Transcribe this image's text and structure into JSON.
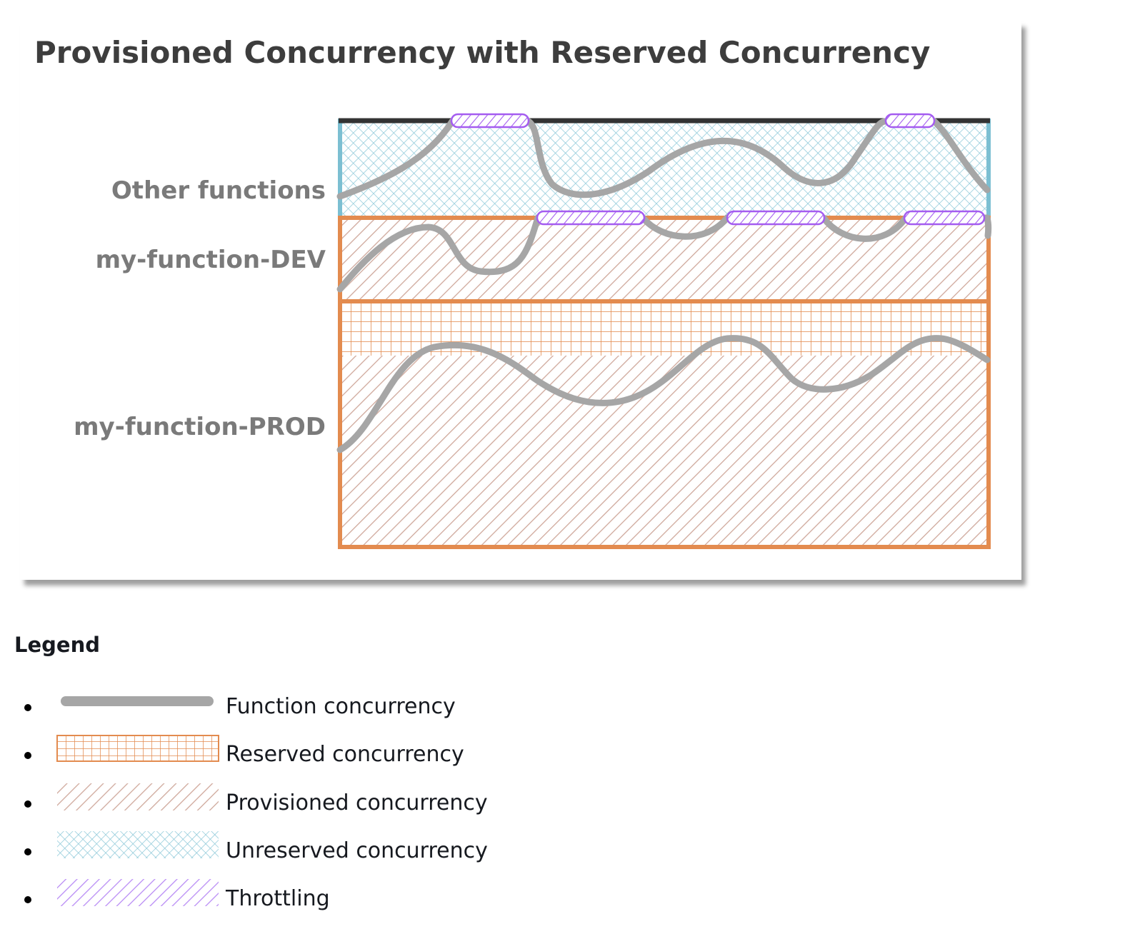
{
  "diagram": {
    "title": "Provisioned Concurrency with Reserved Concurrency",
    "rows": [
      {
        "key": "other",
        "label": "Other functions"
      },
      {
        "key": "dev",
        "label": "my-function-DEV"
      },
      {
        "key": "prod",
        "label": "my-function-PROD"
      }
    ],
    "colors": {
      "reserved": "#e38b4f",
      "provisioned": "#cfa89b",
      "unreserved": "#8ec9d9",
      "throttling": "#a45cf0",
      "function_line": "#a6a6a6",
      "top_limit": "#333333"
    }
  },
  "legend": {
    "heading": "Legend",
    "items": [
      {
        "key": "function",
        "label": "Function concurrency",
        "icon": "function-concurrency-line"
      },
      {
        "key": "reserved",
        "label": "Reserved concurrency",
        "icon": "reserved-grid-pattern"
      },
      {
        "key": "provisioned",
        "label": "Provisioned concurrency",
        "icon": "provisioned-hatch-pattern"
      },
      {
        "key": "unreserved",
        "label": "Unreserved concurrency",
        "icon": "unreserved-crosshatch-pattern"
      },
      {
        "key": "throttling",
        "label": "Throttling",
        "icon": "throttling-hatch-pattern"
      }
    ]
  }
}
